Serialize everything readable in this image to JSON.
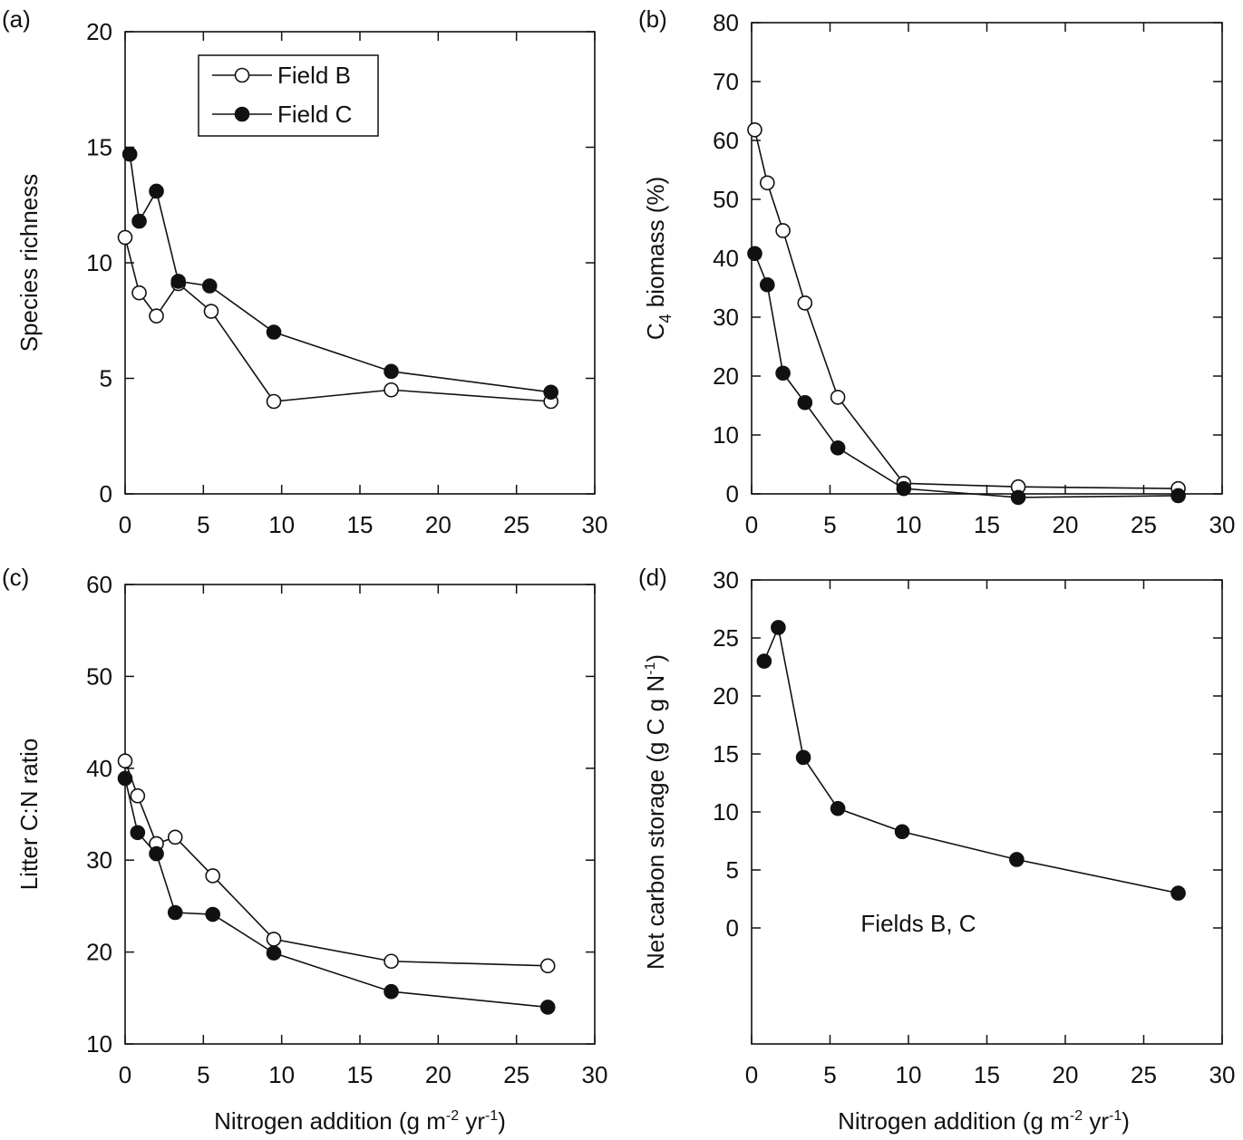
{
  "xlabel_shared": {
    "pre": "Nitrogen addition (g m",
    "sup1": "-2",
    "mid": " yr",
    "sup2": "-1",
    "post": ")"
  },
  "chart_data": [
    {
      "type": "line",
      "panel": "(a)",
      "ylabel": "Species richness",
      "xlim": [
        0,
        30
      ],
      "ylim": [
        0,
        20
      ],
      "xticks": [
        0,
        5,
        10,
        15,
        20,
        25,
        30
      ],
      "yticks": [
        0,
        5,
        10,
        15,
        20
      ],
      "legend": {
        "position": "top-left"
      },
      "series": [
        {
          "name": "Field B",
          "marker": "open-circle",
          "x": [
            0,
            0.9,
            2.0,
            3.4,
            5.5,
            9.5,
            17.0,
            27.2
          ],
          "y": [
            11.1,
            8.7,
            7.7,
            9.1,
            7.9,
            4.0,
            4.5,
            4.0
          ]
        },
        {
          "name": "Field C",
          "marker": "filled-circle",
          "x": [
            0.3,
            0.9,
            2.0,
            3.4,
            5.4,
            9.5,
            17.0,
            27.2
          ],
          "y": [
            14.7,
            11.8,
            13.1,
            9.2,
            9.0,
            7.0,
            5.3,
            4.4
          ]
        }
      ]
    },
    {
      "type": "line",
      "panel": "(b)",
      "ylabel": "C4 biomass (%)",
      "ylabel_parts": {
        "pre": "C",
        "sub": "4",
        "post": " biomass (%)"
      },
      "xlim": [
        0,
        30
      ],
      "ylim": [
        0,
        80
      ],
      "xticks": [
        0,
        5,
        10,
        15,
        20,
        25,
        30
      ],
      "yticks": [
        0,
        10,
        20,
        30,
        40,
        50,
        60,
        70,
        80
      ],
      "series": [
        {
          "name": "Field B",
          "marker": "open-circle",
          "x": [
            0.2,
            1.0,
            2.0,
            3.4,
            5.5,
            9.7,
            17.0,
            27.2
          ],
          "y": [
            61.8,
            52.8,
            44.7,
            32.4,
            16.4,
            1.8,
            1.2,
            0.9
          ]
        },
        {
          "name": "Field C",
          "marker": "filled-circle",
          "x": [
            0.2,
            1.0,
            2.0,
            3.4,
            5.5,
            9.7,
            17.0,
            27.2
          ],
          "y": [
            40.8,
            35.5,
            20.5,
            15.5,
            7.8,
            0.9,
            -0.6,
            -0.3
          ]
        }
      ]
    },
    {
      "type": "line",
      "panel": "(c)",
      "ylabel": "Litter C:N ratio",
      "xlim": [
        0,
        30
      ],
      "ylim": [
        10,
        60
      ],
      "xticks": [
        0,
        5,
        10,
        15,
        20,
        25,
        30
      ],
      "yticks": [
        10,
        20,
        30,
        40,
        50,
        60
      ],
      "series": [
        {
          "name": "Field B",
          "marker": "open-circle",
          "x": [
            0,
            0.8,
            2.0,
            3.2,
            5.6,
            9.5,
            17.0,
            27.0
          ],
          "y": [
            40.8,
            37.0,
            31.8,
            32.5,
            28.3,
            21.4,
            19.0,
            18.5
          ]
        },
        {
          "name": "Field C",
          "marker": "filled-circle",
          "x": [
            0,
            0.8,
            2.0,
            3.2,
            5.6,
            9.5,
            17.0,
            27.0
          ],
          "y": [
            38.9,
            33.0,
            30.7,
            24.3,
            24.1,
            19.9,
            15.7,
            14.0
          ]
        }
      ]
    },
    {
      "type": "line",
      "panel": "(d)",
      "ylabel": "Net carbon storage (g C g N-1)",
      "ylabel_parts": {
        "pre": "Net carbon storage (g C g N",
        "sup": "-1",
        "post": ")"
      },
      "annotation": "Fields B, C",
      "xlim": [
        0,
        30
      ],
      "ylim": [
        -10,
        30
      ],
      "xticks": [
        0,
        5,
        10,
        15,
        20,
        25,
        30
      ],
      "yticks": [
        0,
        5,
        10,
        15,
        20,
        25,
        30
      ],
      "series": [
        {
          "marker": "filled-circle",
          "x": [
            0.8,
            1.7,
            3.3,
            5.5,
            9.6,
            16.9,
            27.2
          ],
          "y": [
            23.0,
            25.9,
            14.7,
            10.3,
            8.3,
            5.9,
            3.0
          ]
        }
      ]
    }
  ]
}
